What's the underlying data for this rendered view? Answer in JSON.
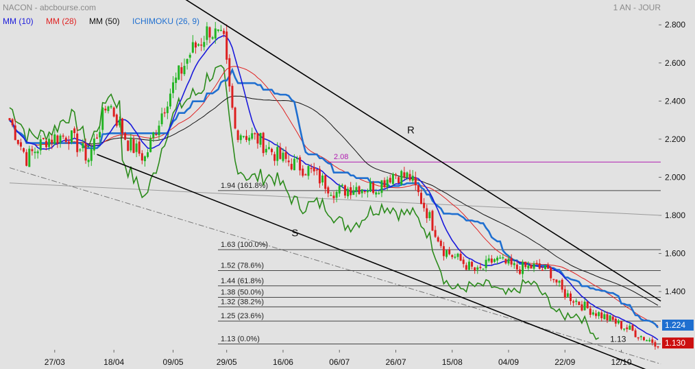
{
  "header": {
    "left_title": "NACON - abcbourse.com",
    "right_title": "1 AN - JOUR"
  },
  "legend": [
    {
      "label": "MM (10)",
      "color": "#1a1adb"
    },
    {
      "label": "MM (28)",
      "color": "#e02020"
    },
    {
      "label": "MM (50)",
      "color": "#111111"
    },
    {
      "label": "ICHIMOKU (26, 9)",
      "color": "#1f6fd0"
    }
  ],
  "colors": {
    "background": "#e2e2e2",
    "candle_up": "#22b422",
    "candle_down": "#dd1f1f",
    "mm10": "#1a1adb",
    "mm28": "#e02020",
    "mm50": "#111111",
    "ichimoku": "#1f6fd0",
    "green_line": "#2a8a1a",
    "resistance_level": "#b01ab0",
    "fib_line": "#444444",
    "price_tag_ichimoku": "#1f6fd0",
    "price_tag_last": "#cc1010"
  },
  "chart_data": {
    "type": "candlestick",
    "title": "NACON - abcbourse.com",
    "period": "1 AN - JOUR",
    "yaxis": {
      "ticks": [
        1.4,
        1.6,
        1.8,
        2.0,
        2.2,
        2.4,
        2.6,
        2.8
      ],
      "tick_labels": [
        "1.400",
        "1.600",
        "1.800",
        "2.000",
        "2.200",
        "2.400",
        "2.600",
        "2.800"
      ],
      "ylim": [
        1.08,
        2.88
      ],
      "side": "right"
    },
    "xaxis": {
      "tick_labels": [
        "27/03",
        "18/04",
        "09/05",
        "29/05",
        "16/06",
        "06/07",
        "26/07",
        "15/08",
        "04/09",
        "22/09",
        "12/10"
      ],
      "tick_index": [
        16,
        37,
        58,
        77,
        97,
        117,
        137,
        157,
        177,
        197,
        217
      ],
      "n_sessions": 231
    },
    "key_points": [
      {
        "i": 0,
        "close": 2.3
      },
      {
        "i": 6,
        "close": 2.1
      },
      {
        "i": 13,
        "close": 2.2
      },
      {
        "i": 21,
        "close": 2.22
      },
      {
        "i": 28,
        "close": 2.1
      },
      {
        "i": 35,
        "close": 2.4
      },
      {
        "i": 42,
        "close": 2.18
      },
      {
        "i": 48,
        "close": 2.1
      },
      {
        "i": 56,
        "close": 2.42
      },
      {
        "i": 64,
        "close": 2.65
      },
      {
        "i": 71,
        "close": 2.78
      },
      {
        "i": 76,
        "close": 2.7
      },
      {
        "i": 78,
        "close": 2.45
      },
      {
        "i": 80,
        "close": 2.25
      },
      {
        "i": 88,
        "close": 2.2
      },
      {
        "i": 96,
        "close": 2.1
      },
      {
        "i": 106,
        "close": 2.04
      },
      {
        "i": 116,
        "close": 1.92
      },
      {
        "i": 122,
        "close": 1.95
      },
      {
        "i": 130,
        "close": 1.95
      },
      {
        "i": 136,
        "close": 2.02
      },
      {
        "i": 142,
        "close": 2.0
      },
      {
        "i": 148,
        "close": 1.82
      },
      {
        "i": 154,
        "close": 1.62
      },
      {
        "i": 160,
        "close": 1.56
      },
      {
        "i": 166,
        "close": 1.5
      },
      {
        "i": 172,
        "close": 1.57
      },
      {
        "i": 180,
        "close": 1.52
      },
      {
        "i": 186,
        "close": 1.53
      },
      {
        "i": 192,
        "close": 1.5
      },
      {
        "i": 196,
        "close": 1.4
      },
      {
        "i": 204,
        "close": 1.32
      },
      {
        "i": 212,
        "close": 1.26
      },
      {
        "i": 220,
        "close": 1.2
      },
      {
        "i": 226,
        "close": 1.15
      },
      {
        "i": 230,
        "close": 1.13
      }
    ],
    "series": [
      {
        "name": "MM (10)",
        "period": 10
      },
      {
        "name": "MM (28)",
        "period": 28
      },
      {
        "name": "MM (50)",
        "period": 50
      },
      {
        "name": "ICHIMOKU (26, 9)",
        "period": 26
      }
    ],
    "resistance_level": {
      "label": "2.08",
      "value": 2.08
    },
    "fibonacci": [
      {
        "label": "1.94  (161.8%)",
        "value": 1.93
      },
      {
        "label": "1.63  (100.0%)",
        "value": 1.62
      },
      {
        "label": "1.52  (78.6%)",
        "value": 1.51
      },
      {
        "label": "1.44  (61.8%)",
        "value": 1.43
      },
      {
        "label": "1.38  (50.0%)",
        "value": 1.37
      },
      {
        "label": "1.32  (38.2%)",
        "value": 1.32
      },
      {
        "label": "1.25  (23.6%)",
        "value": 1.245
      },
      {
        "label": "1.13  (0.0%)",
        "value": 1.125
      }
    ],
    "annotations": [
      {
        "label": "R",
        "i": 141,
        "value": 2.23
      },
      {
        "label": "S",
        "i": 100,
        "value": 1.69
      },
      {
        "label": "1.13",
        "i": 213,
        "value": 1.135
      }
    ],
    "trendlines": [
      {
        "name": "resistance",
        "points": [
          [
            50,
            3.05
          ],
          [
            231,
            1.35
          ]
        ]
      },
      {
        "name": "support",
        "points": [
          [
            31,
            2.12
          ],
          [
            231,
            0.96
          ]
        ]
      },
      {
        "name": "support-dashdot",
        "points": [
          [
            0,
            2.05
          ],
          [
            231,
            1.02
          ]
        ]
      },
      {
        "name": "grey-channel",
        "points": [
          [
            0,
            1.97
          ],
          [
            231,
            1.8
          ]
        ]
      }
    ],
    "price_tags": [
      {
        "label": "1.224",
        "value": 1.224,
        "kind": "ichimoku"
      },
      {
        "label": "1.130",
        "value": 1.13,
        "kind": "last"
      }
    ]
  }
}
